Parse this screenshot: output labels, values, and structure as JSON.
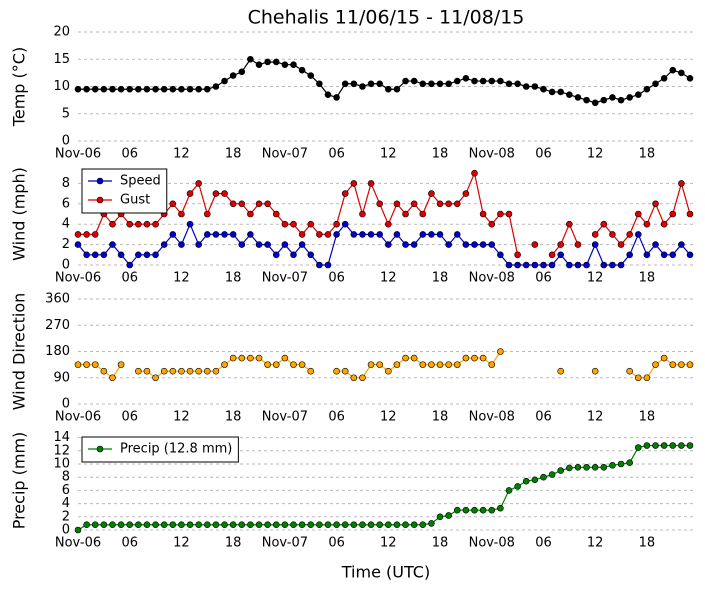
{
  "title": "Chehalis 11/06/15 - 11/08/15",
  "xlabel": "Time (UTC)",
  "chart_data": [
    {
      "type": "line",
      "ylabel": "Temp (°C)",
      "ylim": [
        0,
        20
      ],
      "yticks": [
        0,
        5,
        10,
        15,
        20
      ],
      "grid": true,
      "color": "#000000",
      "categories": [
        "Nov-06",
        null,
        null,
        null,
        null,
        null,
        "06",
        null,
        null,
        null,
        null,
        null,
        "12",
        null,
        null,
        null,
        null,
        null,
        "18",
        null,
        null,
        null,
        null,
        null,
        "Nov-07",
        null,
        null,
        null,
        null,
        null,
        "06",
        null,
        null,
        null,
        null,
        null,
        "12",
        null,
        null,
        null,
        null,
        null,
        "18",
        null,
        null,
        null,
        null,
        null,
        "Nov-08",
        null,
        null,
        null,
        null,
        null,
        "06",
        null,
        null,
        null,
        null,
        null,
        "12",
        null,
        null,
        null,
        null,
        null,
        "18",
        null,
        null,
        null,
        null,
        null
      ],
      "values": [
        9.5,
        9.5,
        9.5,
        9.5,
        9.5,
        9.5,
        9.5,
        9.5,
        9.5,
        9.5,
        9.5,
        9.5,
        9.5,
        9.5,
        9.5,
        9.5,
        10,
        11,
        12,
        12.7,
        15,
        14,
        14.5,
        14.5,
        14,
        14,
        13,
        12,
        10.5,
        8.5,
        8,
        10.5,
        10.5,
        10,
        10.5,
        10.5,
        9.5,
        9.5,
        11,
        11,
        10.5,
        10.5,
        10.5,
        10.5,
        11,
        11.5,
        11,
        11,
        11,
        11,
        10.5,
        10.5,
        10,
        10,
        9.5,
        9,
        9,
        8.5,
        8,
        7.5,
        7,
        7.5,
        8,
        7.5,
        8,
        8.5,
        9.5,
        10.5,
        11.5,
        13,
        12.5,
        11.5
      ]
    },
    {
      "type": "line",
      "ylabel": "Wind (mph)",
      "ylim": [
        0,
        10
      ],
      "yticks": [
        0,
        2,
        4,
        6,
        8
      ],
      "grid": true,
      "legend": "upper left",
      "categories": [
        "Nov-06",
        null,
        null,
        null,
        null,
        null,
        "06",
        null,
        null,
        null,
        null,
        null,
        "12",
        null,
        null,
        null,
        null,
        null,
        "18",
        null,
        null,
        null,
        null,
        null,
        "Nov-07",
        null,
        null,
        null,
        null,
        null,
        "06",
        null,
        null,
        null,
        null,
        null,
        "12",
        null,
        null,
        null,
        null,
        null,
        "18",
        null,
        null,
        null,
        null,
        null,
        "Nov-08",
        null,
        null,
        null,
        null,
        null,
        "06",
        null,
        null,
        null,
        null,
        null,
        "12",
        null,
        null,
        null,
        null,
        null,
        "18",
        null,
        null,
        null,
        null,
        null
      ],
      "series": [
        {
          "name": "Speed",
          "color": "#0000cc",
          "values": [
            2,
            1,
            1,
            1,
            2,
            1,
            0,
            1,
            1,
            1,
            2,
            3,
            2,
            4,
            2,
            3,
            3,
            3,
            3,
            2,
            3,
            2,
            2,
            1,
            2,
            1,
            2,
            1,
            0,
            0,
            3,
            4,
            3,
            3,
            3,
            3,
            2,
            3,
            2,
            2,
            3,
            3,
            3,
            2,
            3,
            2,
            2,
            2,
            2,
            1,
            0,
            0,
            0,
            0,
            0,
            0,
            1,
            0,
            0,
            0,
            2,
            0,
            0,
            0,
            1,
            3,
            1,
            2,
            1,
            1,
            2,
            1
          ]
        },
        {
          "name": "Gust",
          "color": "#dd0000",
          "values": [
            3,
            3,
            3,
            5,
            4,
            5,
            4,
            4,
            4,
            4,
            5,
            6,
            5,
            7,
            8,
            5,
            7,
            7,
            6,
            6,
            5,
            6,
            6,
            5,
            4,
            4,
            3,
            4,
            3,
            3,
            4,
            7,
            8,
            5,
            8,
            6,
            4,
            6,
            5,
            6,
            5,
            7,
            6,
            6,
            6,
            7,
            9,
            5,
            4,
            5,
            5,
            1,
            null,
            2,
            null,
            1,
            2,
            4,
            2,
            null,
            3,
            4,
            3,
            2,
            3,
            5,
            4,
            6,
            4,
            5,
            8,
            5
          ]
        }
      ]
    },
    {
      "type": "line",
      "ylabel": "Wind Direction",
      "ylim": [
        0,
        360
      ],
      "yticks": [
        0,
        90,
        180,
        270,
        360
      ],
      "grid": true,
      "color": "#ffa500",
      "categories": [
        "Nov-06",
        null,
        null,
        null,
        null,
        null,
        "06",
        null,
        null,
        null,
        null,
        null,
        "12",
        null,
        null,
        null,
        null,
        null,
        "18",
        null,
        null,
        null,
        null,
        null,
        "Nov-07",
        null,
        null,
        null,
        null,
        null,
        "06",
        null,
        null,
        null,
        null,
        null,
        "12",
        null,
        null,
        null,
        null,
        null,
        "18",
        null,
        null,
        null,
        null,
        null,
        "Nov-08",
        null,
        null,
        null,
        null,
        null,
        "06",
        null,
        null,
        null,
        null,
        null,
        "12",
        null,
        null,
        null,
        null,
        null,
        "18",
        null,
        null,
        null,
        null,
        null
      ],
      "values": [
        135,
        135,
        135,
        112.5,
        90,
        135,
        null,
        112.5,
        112.5,
        90,
        112.5,
        112.5,
        112.5,
        112.5,
        112.5,
        112.5,
        112.5,
        135,
        157.5,
        157.5,
        157.5,
        157.5,
        135,
        135,
        157.5,
        135,
        135,
        112.5,
        null,
        null,
        112.5,
        112.5,
        90,
        90,
        135,
        135,
        112.5,
        135,
        157.5,
        157.5,
        135,
        135,
        135,
        135,
        135,
        157.5,
        157.5,
        157.5,
        135,
        180,
        null,
        null,
        null,
        null,
        null,
        null,
        112.5,
        null,
        null,
        null,
        112.5,
        null,
        null,
        null,
        112.5,
        90,
        90,
        135,
        157.5,
        135,
        135,
        135
      ]
    },
    {
      "type": "line",
      "ylabel": "Precip (mm)",
      "ylim": [
        0,
        15
      ],
      "yticks": [
        0,
        2,
        4,
        6,
        8,
        10,
        12,
        14
      ],
      "grid": true,
      "legend": "upper left",
      "categories": [
        "Nov-06",
        null,
        null,
        null,
        null,
        null,
        "06",
        null,
        null,
        null,
        null,
        null,
        "12",
        null,
        null,
        null,
        null,
        null,
        "18",
        null,
        null,
        null,
        null,
        null,
        "Nov-07",
        null,
        null,
        null,
        null,
        null,
        "06",
        null,
        null,
        null,
        null,
        null,
        "12",
        null,
        null,
        null,
        null,
        null,
        "18",
        null,
        null,
        null,
        null,
        null,
        "Nov-08",
        null,
        null,
        null,
        null,
        null,
        "06",
        null,
        null,
        null,
        null,
        null,
        "12",
        null,
        null,
        null,
        null,
        null,
        "18",
        null,
        null,
        null,
        null,
        null
      ],
      "series": [
        {
          "name": "Precip (12.8 mm)",
          "color": "#007f00",
          "values": [
            0,
            0.8,
            0.8,
            0.8,
            0.8,
            0.8,
            0.8,
            0.8,
            0.8,
            0.8,
            0.8,
            0.8,
            0.8,
            0.8,
            0.8,
            0.8,
            0.8,
            0.8,
            0.8,
            0.8,
            0.8,
            0.8,
            0.8,
            0.8,
            0.8,
            0.8,
            0.8,
            0.8,
            0.8,
            0.8,
            0.8,
            0.8,
            0.8,
            0.8,
            0.8,
            0.8,
            0.8,
            0.8,
            0.8,
            0.8,
            0.8,
            1,
            2,
            2.2,
            3,
            3,
            3,
            3,
            3,
            3.3,
            6,
            6.6,
            7.4,
            7.6,
            8,
            8.4,
            9,
            9.4,
            9.5,
            9.5,
            9.5,
            9.5,
            9.8,
            10,
            10.2,
            12.5,
            12.8,
            12.8,
            12.8,
            12.8,
            12.8,
            12.8
          ]
        }
      ]
    }
  ]
}
